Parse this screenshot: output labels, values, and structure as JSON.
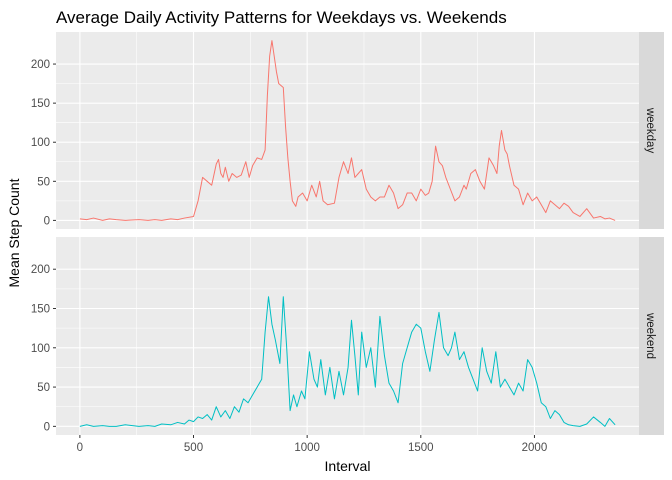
{
  "chart_data": {
    "type": "line",
    "title": "Average Daily Activity Patterns for Weekdays vs. Weekends",
    "xlabel": "Interval",
    "ylabel": "Mean Step Count",
    "xlim": [
      -105,
      2460
    ],
    "ylim": [
      -11,
      241
    ],
    "x_ticks": [
      0,
      500,
      1000,
      1500,
      2000
    ],
    "y_ticks": [
      0,
      50,
      100,
      150,
      200
    ],
    "grid": true,
    "legend": "none",
    "colors": {
      "weekday": "#F8766D",
      "weekend": "#00BFC4",
      "panel": "#EBEBEB",
      "strip": "#D9D9D9",
      "grid": "#FFFFFF"
    },
    "panels": [
      {
        "name": "weekday",
        "x": [
          0,
          30,
          60,
          100,
          130,
          160,
          200,
          260,
          300,
          330,
          360,
          400,
          430,
          460,
          500,
          520,
          540,
          560,
          580,
          600,
          610,
          620,
          630,
          640,
          655,
          670,
          690,
          710,
          730,
          745,
          760,
          780,
          800,
          815,
          825,
          835,
          845,
          855,
          865,
          875,
          895,
          905,
          915,
          925,
          935,
          950,
          960,
          980,
          1000,
          1020,
          1040,
          1055,
          1070,
          1090,
          1120,
          1140,
          1160,
          1180,
          1195,
          1210,
          1225,
          1240,
          1260,
          1280,
          1300,
          1320,
          1340,
          1360,
          1380,
          1400,
          1420,
          1440,
          1460,
          1480,
          1500,
          1520,
          1535,
          1550,
          1565,
          1580,
          1595,
          1610,
          1630,
          1650,
          1670,
          1690,
          1700,
          1720,
          1740,
          1760,
          1780,
          1800,
          1820,
          1835,
          1845,
          1855,
          1870,
          1880,
          1890,
          1910,
          1930,
          1950,
          1970,
          1990,
          2010,
          2030,
          2050,
          2070,
          2090,
          2110,
          2130,
          2150,
          2170,
          2200,
          2230,
          2260,
          2290,
          2310,
          2330,
          2355
        ],
        "values": [
          2,
          1,
          3,
          0,
          2,
          1,
          0,
          1,
          0,
          1,
          0,
          2,
          1,
          3,
          5,
          25,
          55,
          50,
          45,
          72,
          78,
          60,
          55,
          68,
          50,
          60,
          55,
          58,
          75,
          55,
          70,
          80,
          78,
          90,
          160,
          210,
          230,
          210,
          190,
          175,
          170,
          120,
          80,
          50,
          25,
          18,
          30,
          35,
          25,
          45,
          30,
          50,
          25,
          20,
          22,
          55,
          75,
          60,
          80,
          55,
          60,
          65,
          40,
          30,
          25,
          30,
          30,
          45,
          35,
          15,
          20,
          35,
          35,
          25,
          40,
          32,
          35,
          50,
          95,
          75,
          70,
          55,
          40,
          25,
          30,
          45,
          40,
          60,
          65,
          50,
          40,
          80,
          70,
          60,
          95,
          115,
          90,
          85,
          70,
          45,
          40,
          20,
          35,
          25,
          30,
          20,
          10,
          25,
          20,
          15,
          22,
          18,
          10,
          5,
          15,
          3,
          5,
          2,
          3,
          0
        ],
        "strip_label": "weekday"
      },
      {
        "name": "weekend",
        "x": [
          0,
          30,
          60,
          100,
          130,
          160,
          200,
          260,
          300,
          330,
          360,
          400,
          430,
          460,
          480,
          500,
          520,
          540,
          560,
          580,
          600,
          620,
          640,
          660,
          680,
          700,
          720,
          740,
          760,
          780,
          800,
          815,
          830,
          845,
          860,
          880,
          895,
          910,
          925,
          940,
          955,
          975,
          990,
          1010,
          1030,
          1045,
          1060,
          1080,
          1100,
          1120,
          1140,
          1160,
          1180,
          1195,
          1210,
          1225,
          1240,
          1260,
          1280,
          1300,
          1320,
          1340,
          1360,
          1380,
          1400,
          1420,
          1440,
          1460,
          1480,
          1500,
          1520,
          1540,
          1560,
          1580,
          1600,
          1620,
          1635,
          1650,
          1670,
          1690,
          1710,
          1730,
          1750,
          1770,
          1790,
          1810,
          1830,
          1850,
          1870,
          1890,
          1910,
          1930,
          1950,
          1970,
          1990,
          2010,
          2030,
          2050,
          2070,
          2090,
          2110,
          2130,
          2150,
          2170,
          2200,
          2230,
          2260,
          2290,
          2310,
          2330,
          2355
        ],
        "values": [
          0,
          2,
          0,
          1,
          0,
          0,
          2,
          0,
          1,
          0,
          3,
          2,
          5,
          3,
          8,
          6,
          12,
          10,
          15,
          8,
          25,
          12,
          20,
          10,
          25,
          18,
          35,
          30,
          40,
          50,
          60,
          120,
          165,
          130,
          110,
          80,
          165,
          100,
          20,
          40,
          25,
          45,
          35,
          95,
          60,
          50,
          85,
          40,
          75,
          35,
          70,
          40,
          75,
          135,
          90,
          40,
          120,
          75,
          100,
          50,
          140,
          90,
          55,
          45,
          30,
          80,
          100,
          120,
          130,
          125,
          95,
          70,
          110,
          145,
          100,
          90,
          100,
          120,
          85,
          95,
          75,
          60,
          45,
          100,
          70,
          55,
          95,
          50,
          60,
          50,
          40,
          55,
          45,
          85,
          75,
          55,
          30,
          25,
          10,
          20,
          15,
          5,
          2,
          1,
          0,
          3,
          12,
          5,
          0,
          10,
          2
        ],
        "strip_label": "weekend"
      }
    ]
  }
}
